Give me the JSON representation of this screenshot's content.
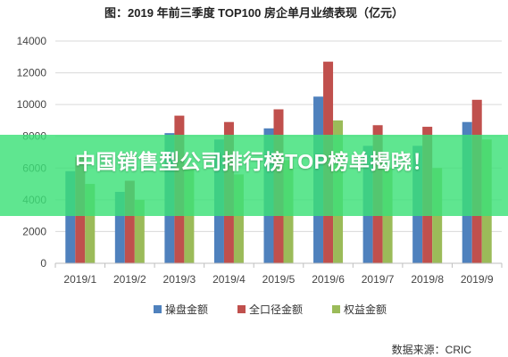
{
  "chart_data": {
    "type": "bar",
    "title": "图：2019 年前三季度 TOP100 房企单月业绩表现（亿元）",
    "categories": [
      "2019/1",
      "2019/2",
      "2019/3",
      "2019/4",
      "2019/5",
      "2019/6",
      "2019/7",
      "2019/8",
      "2019/9"
    ],
    "series": [
      {
        "name": "操盘金额",
        "values": [
          5800,
          4500,
          8200,
          7800,
          8500,
          10500,
          7400,
          7400,
          8900
        ]
      },
      {
        "name": "全口径金额",
        "values": [
          6700,
          5200,
          9300,
          8900,
          9700,
          12700,
          8700,
          8600,
          10300
        ]
      },
      {
        "name": "权益金额",
        "values": [
          5000,
          4000,
          6000,
          5600,
          6500,
          9000,
          6000,
          6000,
          7800
        ]
      }
    ],
    "ylim": [
      0,
      14000
    ],
    "yticks": [
      0,
      2000,
      4000,
      6000,
      8000,
      10000,
      12000,
      14000
    ],
    "grid": "horizontal",
    "legend": "bottom",
    "colors": [
      "#4f81bd",
      "#c0504d",
      "#9bbb59"
    ]
  },
  "banner": {
    "text": "中国销售型公司排行榜TOP榜单揭晓！"
  },
  "source": "数据来源：CRIC"
}
